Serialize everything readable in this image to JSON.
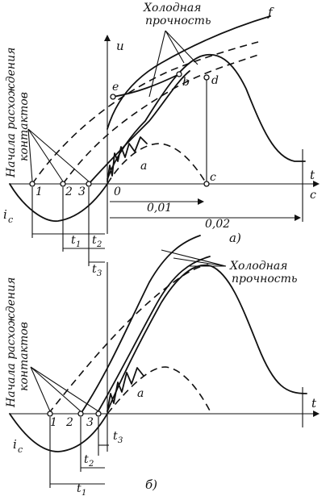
{
  "top": {
    "annotation": "Холодная\nпрочность",
    "axis_u": "u",
    "curve_f": "f",
    "side_label": "Начала расхождения\nконтактов",
    "point_labels": [
      "1",
      "2",
      "3"
    ],
    "origin": "0",
    "pt_e": "e",
    "pt_b": "b",
    "pt_d": "d",
    "pt_a": "a",
    "pt_c": "c",
    "axis_t": "t",
    "axis_t_unit": "c",
    "ic_label": "i",
    "ic_sub": "c",
    "dim_001": "0,01",
    "dim_002": "0,02",
    "t1": "t",
    "t1_sub": "1",
    "t2": "t",
    "t2_sub": "2",
    "t3": "t",
    "t3_sub": "3",
    "caption": "а)"
  },
  "bottom": {
    "annotation": "Холодная\nпрочность",
    "side_label": "Начала расхождения\nконтактов",
    "point_labels": [
      "1",
      "2",
      "3"
    ],
    "pt_a": "a",
    "axis_t": "t",
    "ic_label": "i",
    "ic_sub": "c",
    "t1": "t",
    "t1_sub": "1",
    "t2": "t",
    "t2_sub": "2",
    "t3": "t",
    "t3_sub": "3",
    "caption": "б)"
  }
}
